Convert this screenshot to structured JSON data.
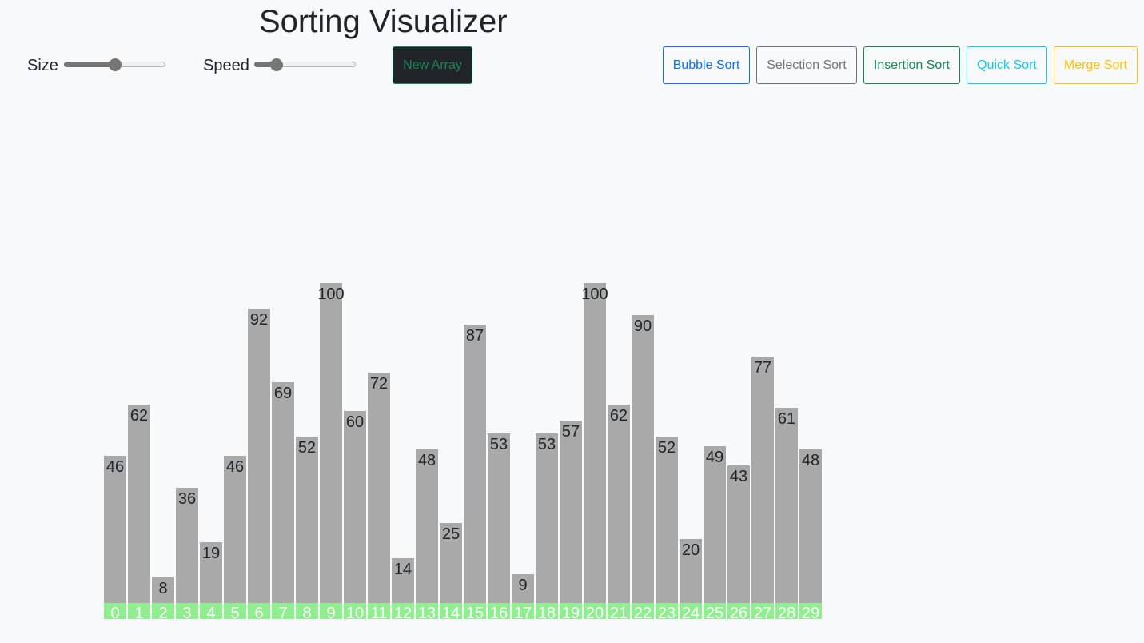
{
  "header": {
    "title": "Sorting Visualizer"
  },
  "controls": {
    "size_label": "Size",
    "size_value_fraction": 0.5,
    "speed_label": "Speed",
    "speed_value_fraction": 0.18,
    "new_array_label": "New Array"
  },
  "algorithms": {
    "bubble": "Bubble Sort",
    "selection": "Selection Sort",
    "insertion": "Insertion Sort",
    "quick": "Quick Sort",
    "merge": "Merge Sort"
  },
  "colors": {
    "bar": "#a9a9a9",
    "index_strip": "#90ee90",
    "bubble": "#0d6efd",
    "selection": "#6c757d",
    "insertion": "#198754",
    "quick": "#0dcaf0",
    "merge": "#ffc107"
  },
  "array": {
    "max_value": 100,
    "values": [
      46,
      62,
      8,
      36,
      19,
      46,
      92,
      69,
      52,
      100,
      60,
      72,
      14,
      48,
      25,
      87,
      53,
      9,
      53,
      57,
      100,
      62,
      90,
      52,
      20,
      49,
      43,
      77,
      61,
      48
    ],
    "indices": [
      "0",
      "1",
      "2",
      "3",
      "4",
      "5",
      "6",
      "7",
      "8",
      "9",
      "10",
      "11",
      "12",
      "13",
      "14",
      "15",
      "16",
      "17",
      "18",
      "19",
      "20",
      "21",
      "22",
      "23",
      "24",
      "25",
      "26",
      "27",
      "28",
      "29"
    ]
  }
}
